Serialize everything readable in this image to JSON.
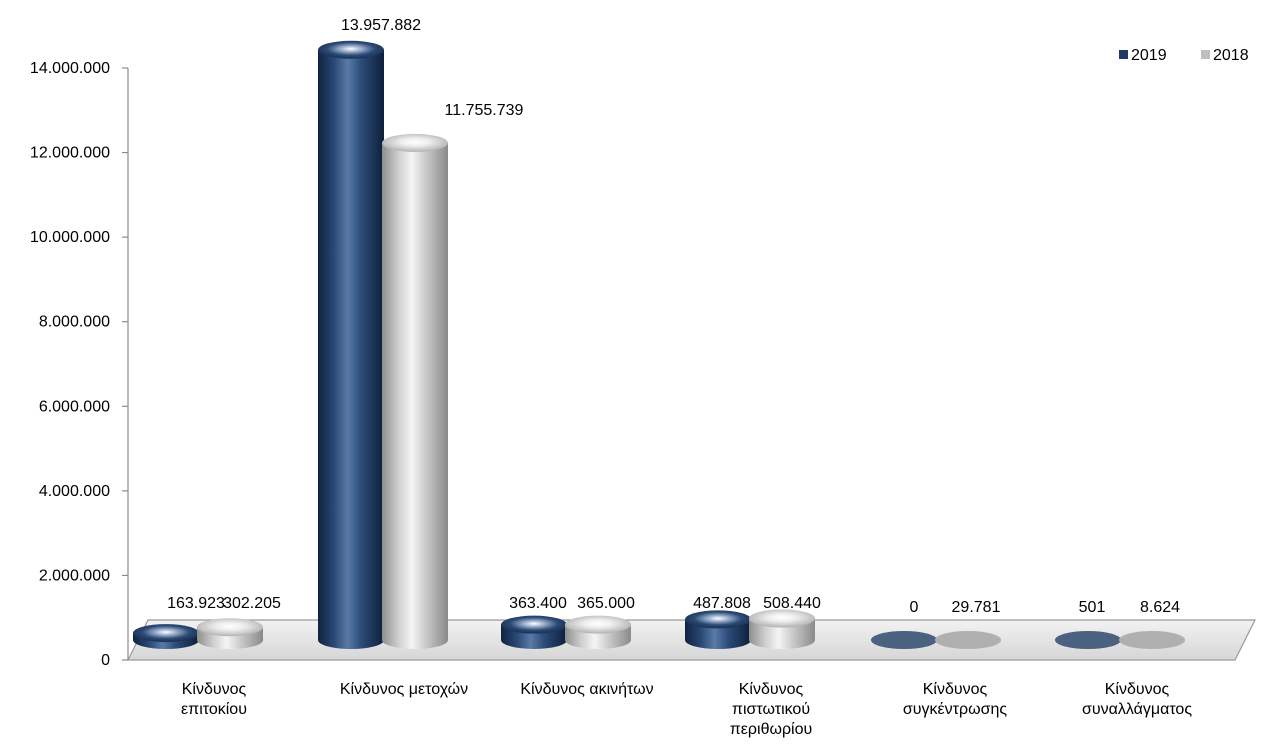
{
  "chart_data": {
    "type": "bar",
    "title": "",
    "xlabel": "",
    "ylabel": "",
    "ylim": [
      0,
      14000000
    ],
    "yticks": [
      0,
      2000000,
      4000000,
      6000000,
      8000000,
      10000000,
      12000000,
      14000000
    ],
    "ytick_labels": [
      "0",
      "2.000.000",
      "4.000.000",
      "6.000.000",
      "8.000.000",
      "10.000.000",
      "12.000.000",
      "14.000.000"
    ],
    "grid": false,
    "legend_position": "top-right",
    "categories": [
      [
        "Κίνδυνος",
        "επιτοκίου"
      ],
      [
        "Κίνδυνος μετοχών"
      ],
      [
        "Κίνδυνος ακινήτων"
      ],
      [
        "Κίνδυνος",
        "πιστωτικού",
        "περιθωρίου"
      ],
      [
        "Κίνδυνος",
        "συγκέντρωσης"
      ],
      [
        "Κίνδυνος",
        "συναλλάγματος"
      ]
    ],
    "series": [
      {
        "name": "2019",
        "color": "#1f3a60",
        "values": [
          163923,
          13957882,
          363400,
          487808,
          0,
          501
        ],
        "labels": [
          "163.923",
          "13.957.882",
          "363.400",
          "487.808",
          "0",
          "501"
        ]
      },
      {
        "name": "2018",
        "color": "#bfbfbf",
        "values": [
          302205,
          11755739,
          365000,
          508440,
          29781,
          8624
        ],
        "labels": [
          "302.205",
          "11.755.739",
          "365.000",
          "508.440",
          "29.781",
          "8.624"
        ]
      }
    ]
  }
}
